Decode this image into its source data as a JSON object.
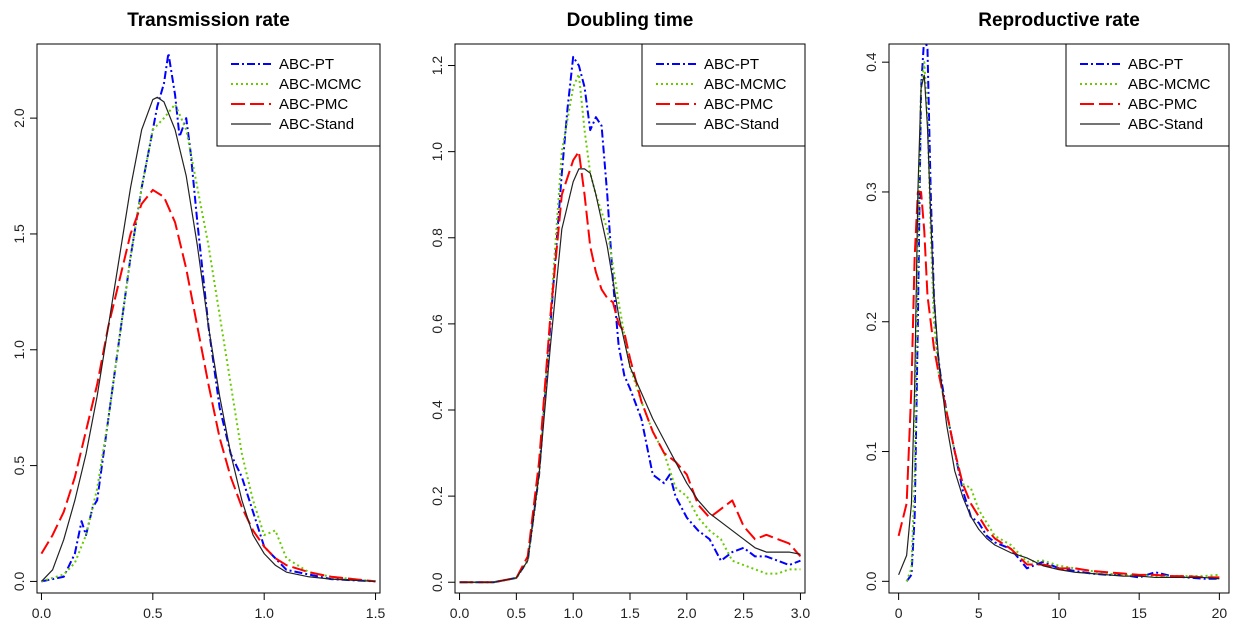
{
  "chart_data": [
    {
      "type": "line",
      "title": "Transmission rate",
      "xlim": [
        -0.02,
        1.52
      ],
      "ylim": [
        -0.05,
        2.32
      ],
      "xticks": [
        0.0,
        0.5,
        1.0,
        1.5
      ],
      "xtick_labels": [
        "0.0",
        "0.5",
        "1.0",
        "1.5"
      ],
      "yticks": [
        0.0,
        0.5,
        1.0,
        1.5,
        2.0
      ],
      "ytick_labels": [
        "0.0",
        "0.5",
        "1.0",
        "1.5",
        "2.0"
      ],
      "legend_position": "top-right",
      "series": [
        {
          "name": "ABC-PT",
          "color": "#0000ff",
          "dash": "8,3,2,3",
          "x": [
            0.0,
            0.1,
            0.15,
            0.18,
            0.2,
            0.23,
            0.25,
            0.3,
            0.35,
            0.4,
            0.45,
            0.5,
            0.52,
            0.55,
            0.57,
            0.6,
            0.62,
            0.65,
            0.67,
            0.7,
            0.75,
            0.8,
            0.85,
            0.9,
            0.95,
            1.0,
            1.05,
            1.1,
            1.2,
            1.3,
            1.4,
            1.5
          ],
          "y": [
            0.0,
            0.02,
            0.12,
            0.26,
            0.2,
            0.32,
            0.35,
            0.7,
            1.05,
            1.4,
            1.7,
            1.95,
            2.05,
            2.15,
            2.28,
            2.1,
            1.92,
            2.0,
            1.85,
            1.55,
            1.1,
            0.75,
            0.55,
            0.45,
            0.3,
            0.15,
            0.1,
            0.05,
            0.03,
            0.01,
            0.005,
            0.0
          ]
        },
        {
          "name": "ABC-MCMC",
          "color": "#66cc00",
          "dash": "2,3",
          "x": [
            0.0,
            0.1,
            0.15,
            0.2,
            0.25,
            0.3,
            0.35,
            0.4,
            0.45,
            0.5,
            0.55,
            0.6,
            0.65,
            0.7,
            0.75,
            0.8,
            0.85,
            0.9,
            0.95,
            1.0,
            1.05,
            1.1,
            1.2,
            1.3,
            1.4,
            1.5
          ],
          "y": [
            0.0,
            0.03,
            0.08,
            0.2,
            0.4,
            0.7,
            1.05,
            1.4,
            1.7,
            1.95,
            2.0,
            2.06,
            1.95,
            1.7,
            1.45,
            1.15,
            0.85,
            0.55,
            0.35,
            0.2,
            0.22,
            0.1,
            0.04,
            0.02,
            0.01,
            0.0
          ]
        },
        {
          "name": "ABC-PMC",
          "color": "#ff0000",
          "dash": "14,5",
          "x": [
            0.0,
            0.05,
            0.1,
            0.15,
            0.2,
            0.25,
            0.3,
            0.35,
            0.4,
            0.45,
            0.5,
            0.55,
            0.6,
            0.65,
            0.7,
            0.75,
            0.8,
            0.85,
            0.9,
            0.95,
            1.0,
            1.05,
            1.1,
            1.2,
            1.3,
            1.4,
            1.5
          ],
          "y": [
            0.12,
            0.2,
            0.3,
            0.45,
            0.65,
            0.85,
            1.1,
            1.3,
            1.5,
            1.63,
            1.69,
            1.66,
            1.55,
            1.35,
            1.1,
            0.85,
            0.62,
            0.45,
            0.32,
            0.22,
            0.15,
            0.1,
            0.07,
            0.04,
            0.02,
            0.01,
            0.0
          ]
        },
        {
          "name": "ABC-Stand",
          "color": "#222222",
          "dash": "",
          "x": [
            0.0,
            0.05,
            0.1,
            0.15,
            0.2,
            0.25,
            0.3,
            0.35,
            0.4,
            0.45,
            0.5,
            0.52,
            0.55,
            0.6,
            0.65,
            0.7,
            0.75,
            0.8,
            0.85,
            0.9,
            0.95,
            1.0,
            1.05,
            1.1,
            1.2,
            1.3,
            1.4,
            1.5
          ],
          "y": [
            0.0,
            0.05,
            0.18,
            0.35,
            0.55,
            0.8,
            1.1,
            1.4,
            1.7,
            1.95,
            2.08,
            2.09,
            2.07,
            1.95,
            1.75,
            1.45,
            1.1,
            0.8,
            0.55,
            0.35,
            0.2,
            0.12,
            0.07,
            0.04,
            0.02,
            0.01,
            0.005,
            0.0
          ]
        }
      ]
    },
    {
      "type": "line",
      "title": "Doubling time",
      "xlim": [
        -0.04,
        3.04
      ],
      "ylim": [
        -0.025,
        1.25
      ],
      "xticks": [
        0.0,
        0.5,
        1.0,
        1.5,
        2.0,
        2.5,
        3.0
      ],
      "xtick_labels": [
        "0.0",
        "0.5",
        "1.0",
        "1.5",
        "2.0",
        "2.5",
        "3.0"
      ],
      "yticks": [
        0.0,
        0.2,
        0.4,
        0.6,
        0.8,
        1.0,
        1.2
      ],
      "ytick_labels": [
        "0.0",
        "0.2",
        "0.4",
        "0.6",
        "0.8",
        "1.0",
        "1.2"
      ],
      "legend_position": "top-right",
      "series": [
        {
          "name": "ABC-PT",
          "color": "#0000ff",
          "dash": "8,3,2,3",
          "x": [
            0.0,
            0.3,
            0.5,
            0.6,
            0.7,
            0.8,
            0.9,
            0.95,
            1.0,
            1.05,
            1.1,
            1.15,
            1.2,
            1.25,
            1.3,
            1.35,
            1.4,
            1.45,
            1.5,
            1.6,
            1.7,
            1.8,
            1.85,
            1.9,
            2.0,
            2.1,
            2.2,
            2.3,
            2.4,
            2.5,
            2.6,
            2.7,
            2.8,
            2.9,
            3.0
          ],
          "y": [
            0.0,
            0.0,
            0.01,
            0.05,
            0.25,
            0.6,
            0.95,
            1.1,
            1.22,
            1.2,
            1.15,
            1.05,
            1.08,
            1.06,
            0.9,
            0.7,
            0.55,
            0.48,
            0.45,
            0.38,
            0.25,
            0.23,
            0.25,
            0.2,
            0.15,
            0.12,
            0.1,
            0.05,
            0.07,
            0.08,
            0.06,
            0.06,
            0.05,
            0.04,
            0.05
          ]
        },
        {
          "name": "ABC-MCMC",
          "color": "#66cc00",
          "dash": "2,3",
          "x": [
            0.0,
            0.3,
            0.5,
            0.6,
            0.7,
            0.8,
            0.9,
            1.0,
            1.05,
            1.1,
            1.15,
            1.2,
            1.3,
            1.4,
            1.5,
            1.6,
            1.7,
            1.8,
            1.9,
            2.0,
            2.1,
            2.2,
            2.3,
            2.4,
            2.5,
            2.6,
            2.7,
            2.8,
            2.9,
            3.0
          ],
          "y": [
            0.0,
            0.0,
            0.01,
            0.05,
            0.25,
            0.62,
            1.0,
            1.15,
            1.18,
            1.05,
            0.95,
            0.9,
            0.82,
            0.65,
            0.5,
            0.42,
            0.35,
            0.3,
            0.22,
            0.2,
            0.15,
            0.12,
            0.1,
            0.05,
            0.04,
            0.03,
            0.02,
            0.02,
            0.03,
            0.03
          ]
        },
        {
          "name": "ABC-PMC",
          "color": "#ff0000",
          "dash": "14,5",
          "x": [
            0.0,
            0.3,
            0.5,
            0.6,
            0.7,
            0.8,
            0.9,
            1.0,
            1.05,
            1.1,
            1.15,
            1.2,
            1.25,
            1.3,
            1.35,
            1.4,
            1.45,
            1.5,
            1.6,
            1.7,
            1.8,
            1.9,
            2.0,
            2.1,
            2.2,
            2.3,
            2.4,
            2.5,
            2.6,
            2.7,
            2.8,
            2.9,
            3.0
          ],
          "y": [
            0.0,
            0.0,
            0.01,
            0.06,
            0.28,
            0.62,
            0.9,
            0.98,
            1.0,
            0.9,
            0.78,
            0.72,
            0.68,
            0.66,
            0.65,
            0.6,
            0.58,
            0.52,
            0.42,
            0.35,
            0.3,
            0.28,
            0.25,
            0.18,
            0.15,
            0.17,
            0.19,
            0.13,
            0.1,
            0.11,
            0.1,
            0.09,
            0.06
          ]
        },
        {
          "name": "ABC-Stand",
          "color": "#222222",
          "dash": "",
          "x": [
            0.0,
            0.3,
            0.5,
            0.6,
            0.7,
            0.8,
            0.9,
            1.0,
            1.05,
            1.1,
            1.15,
            1.2,
            1.3,
            1.4,
            1.5,
            1.6,
            1.7,
            1.8,
            1.9,
            2.0,
            2.1,
            2.2,
            2.3,
            2.4,
            2.5,
            2.6,
            2.7,
            2.8,
            2.9,
            3.0
          ],
          "y": [
            0.0,
            0.0,
            0.01,
            0.05,
            0.25,
            0.55,
            0.82,
            0.93,
            0.96,
            0.96,
            0.95,
            0.9,
            0.78,
            0.62,
            0.5,
            0.44,
            0.38,
            0.33,
            0.28,
            0.23,
            0.19,
            0.16,
            0.14,
            0.12,
            0.1,
            0.08,
            0.07,
            0.07,
            0.07,
            0.065
          ]
        }
      ]
    },
    {
      "type": "line",
      "title": "Reproductive rate",
      "xlim": [
        -0.6,
        20.6
      ],
      "ylim": [
        -0.009,
        0.414
      ],
      "xticks": [
        0,
        5,
        10,
        15,
        20
      ],
      "xtick_labels": [
        "0",
        "5",
        "10",
        "15",
        "20"
      ],
      "yticks": [
        0.0,
        0.1,
        0.2,
        0.3,
        0.4
      ],
      "ytick_labels": [
        "0.0",
        "0.1",
        "0.2",
        "0.3",
        "0.4"
      ],
      "legend_position": "top-right",
      "series": [
        {
          "name": "ABC-PT",
          "color": "#0000ff",
          "dash": "8,3,2,3",
          "x": [
            0.5,
            0.8,
            1.0,
            1.2,
            1.4,
            1.6,
            1.8,
            2.0,
            2.2,
            2.4,
            2.6,
            3.0,
            3.5,
            4.0,
            4.5,
            5.0,
            5.5,
            6.0,
            7.0,
            8.0,
            9.0,
            10.0,
            11.0,
            12.0,
            13.0,
            14.0,
            15.0,
            16.0,
            17.0,
            18.0,
            19.0,
            20.0
          ],
          "y": [
            0.0,
            0.005,
            0.05,
            0.2,
            0.38,
            0.42,
            0.41,
            0.3,
            0.22,
            0.18,
            0.16,
            0.13,
            0.1,
            0.07,
            0.05,
            0.045,
            0.035,
            0.03,
            0.025,
            0.01,
            0.015,
            0.01,
            0.008,
            0.006,
            0.005,
            0.005,
            0.003,
            0.007,
            0.004,
            0.003,
            0.002,
            0.002
          ]
        },
        {
          "name": "ABC-MCMC",
          "color": "#66cc00",
          "dash": "2,3",
          "x": [
            0.5,
            0.8,
            1.0,
            1.2,
            1.4,
            1.6,
            1.8,
            2.0,
            2.2,
            2.5,
            3.0,
            3.5,
            4.0,
            4.5,
            5.0,
            5.5,
            6.0,
            7.0,
            8.0,
            9.0,
            10.0,
            11.0,
            12.0,
            13.0,
            14.0,
            15.0,
            16.0,
            17.0,
            18.0,
            19.0,
            20.0
          ],
          "y": [
            0.0,
            0.01,
            0.08,
            0.25,
            0.38,
            0.4,
            0.36,
            0.27,
            0.2,
            0.16,
            0.13,
            0.1,
            0.075,
            0.072,
            0.055,
            0.045,
            0.035,
            0.028,
            0.015,
            0.016,
            0.012,
            0.01,
            0.008,
            0.006,
            0.005,
            0.005,
            0.004,
            0.004,
            0.004,
            0.004,
            0.005
          ]
        },
        {
          "name": "ABC-PMC",
          "color": "#ff0000",
          "dash": "14,5",
          "x": [
            0.0,
            0.5,
            0.8,
            1.0,
            1.2,
            1.4,
            1.6,
            1.8,
            2.0,
            2.2,
            2.5,
            3.0,
            3.5,
            4.0,
            4.5,
            5.0,
            5.5,
            6.0,
            7.0,
            8.0,
            9.0,
            10.0,
            11.0,
            12.0,
            13.0,
            14.0,
            15.0,
            16.0,
            17.0,
            18.0,
            19.0,
            20.0
          ],
          "y": [
            0.035,
            0.06,
            0.15,
            0.25,
            0.3,
            0.3,
            0.27,
            0.22,
            0.2,
            0.18,
            0.16,
            0.13,
            0.1,
            0.075,
            0.06,
            0.05,
            0.04,
            0.033,
            0.025,
            0.013,
            0.013,
            0.01,
            0.01,
            0.008,
            0.007,
            0.006,
            0.005,
            0.005,
            0.004,
            0.004,
            0.003,
            0.003
          ]
        },
        {
          "name": "ABC-Stand",
          "color": "#222222",
          "dash": "",
          "x": [
            0.0,
            0.5,
            0.8,
            1.0,
            1.2,
            1.4,
            1.6,
            1.8,
            2.0,
            2.2,
            2.5,
            3.0,
            3.5,
            4.0,
            4.5,
            5.0,
            5.5,
            6.0,
            7.0,
            8.0,
            9.0,
            10.0,
            11.0,
            12.0,
            13.0,
            14.0,
            15.0,
            16.0,
            17.0,
            18.0,
            19.0,
            20.0
          ],
          "y": [
            0.005,
            0.02,
            0.06,
            0.15,
            0.3,
            0.38,
            0.39,
            0.35,
            0.28,
            0.22,
            0.17,
            0.12,
            0.085,
            0.065,
            0.05,
            0.04,
            0.033,
            0.028,
            0.022,
            0.018,
            0.012,
            0.009,
            0.007,
            0.006,
            0.005,
            0.004,
            0.004,
            0.003,
            0.003,
            0.003,
            0.003,
            0.002
          ]
        }
      ]
    }
  ]
}
